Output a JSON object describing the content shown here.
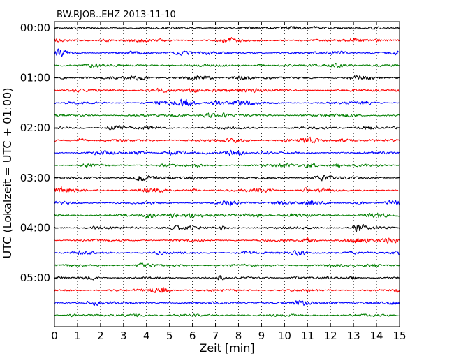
{
  "chart_data": {
    "type": "line",
    "title": "BW.RJOB..EHZ 2013-11-10",
    "xlabel": "Zeit  [min]",
    "ylabel": "UTC (Lokalzeit = UTC + 01:00)",
    "xlim": [
      0,
      15
    ],
    "x_ticks": [
      "0",
      "1",
      "2",
      "3",
      "4",
      "5",
      "6",
      "7",
      "8",
      "9",
      "10",
      "11",
      "12",
      "13",
      "14",
      "15"
    ],
    "y_ticks": [
      "00:00",
      "01:00",
      "02:00",
      "03:00",
      "04:00",
      "05:00"
    ],
    "grid": "vertical dotted",
    "trace_minutes": 15,
    "trace_count": 24,
    "first_trace_start": "00:00",
    "last_trace_start": "05:45",
    "series_colors": [
      "#000000",
      "#ff0000",
      "#0000ff",
      "#007f00"
    ],
    "seed": 20131110
  }
}
